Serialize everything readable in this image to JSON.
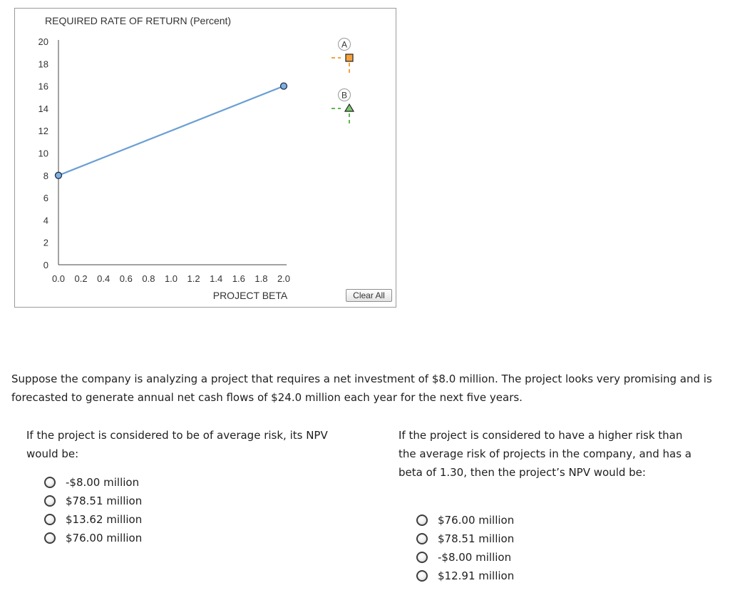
{
  "chart_data": {
    "type": "line",
    "ylabel": "REQUIRED RATE OF RETURN (Percent)",
    "xlabel": "PROJECT BETA",
    "xlim": [
      0.0,
      2.0
    ],
    "ylim": [
      0,
      20
    ],
    "x_ticks": [
      "0.0",
      "0.2",
      "0.4",
      "0.6",
      "0.8",
      "1.0",
      "1.2",
      "1.4",
      "1.6",
      "1.8",
      "2.0"
    ],
    "y_ticks": [
      "0",
      "2",
      "4",
      "6",
      "8",
      "10",
      "12",
      "14",
      "16",
      "18",
      "20"
    ],
    "series": [
      {
        "x": [
          0.0,
          2.0
        ],
        "y": [
          8,
          16
        ],
        "color": "#6a9fd4"
      }
    ],
    "grid": false
  },
  "legend": {
    "items": [
      {
        "label": "A",
        "shape": "square",
        "color": "#f5a23a",
        "dash_color": "#f5a23a"
      },
      {
        "label": "B",
        "shape": "triangle",
        "color": "#7bc96f",
        "dash_color": "#5fb84e"
      }
    ]
  },
  "controls": {
    "clear_label": "Clear All"
  },
  "problem": {
    "text": "Suppose the company is analyzing a project that requires a net investment of $8.0 million. The project looks very promising and is forecasted to generate annual net cash flows of $24.0 million each year for the next five years."
  },
  "question1": {
    "text": "If the project is considered to be of average risk, its NPV would be:",
    "options": [
      "-$8.00 million",
      "$78.51 million",
      "$13.62 million",
      "$76.00 million"
    ]
  },
  "question2": {
    "text": "If the project is considered to have a higher risk than the average risk of projects in the company, and has a beta of 1.30, then the project’s NPV would be:",
    "options": [
      "$76.00 million",
      "$78.51 million",
      "-$8.00 million",
      "$12.91 million"
    ]
  }
}
